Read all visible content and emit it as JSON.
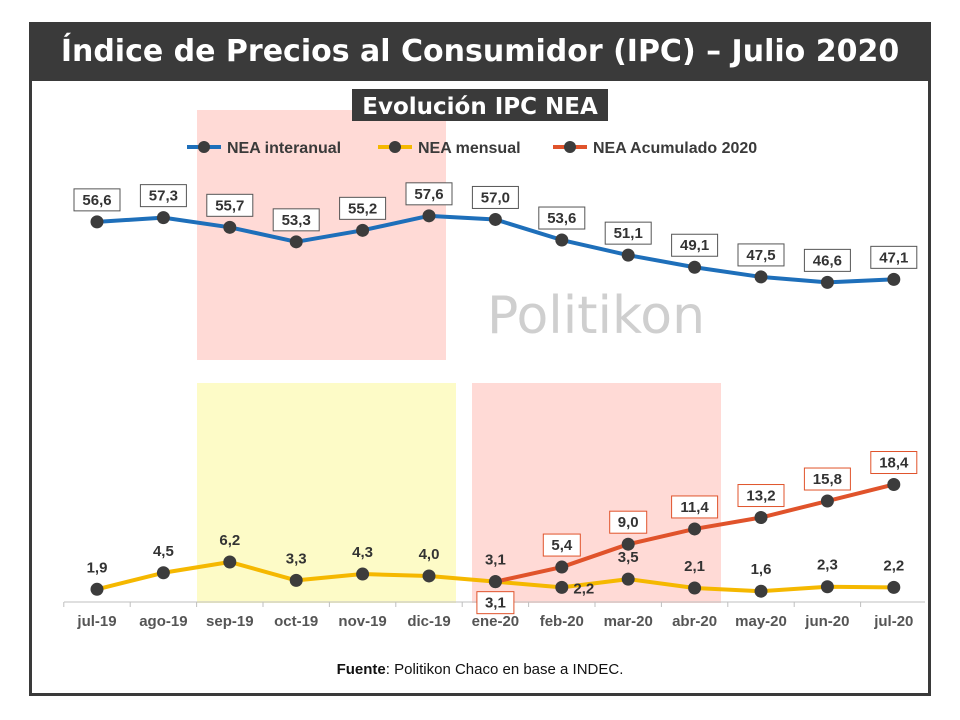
{
  "title": "Índice de Precios al Consumidor (IPC) – Julio 2020",
  "source": {
    "label": "Fuente",
    "text": ": Politikon Chaco en base a INDEC."
  },
  "watermark": "Politikon",
  "colors": {
    "interanual": "#1e6fba",
    "mensual": "#f5b800",
    "acumulado": "#e0532b",
    "marker": "#3c3c3c"
  },
  "chart_data": {
    "type": "line",
    "title": "Evolución IPC NEA",
    "categories": [
      "jul-19",
      "ago-19",
      "sep-19",
      "oct-19",
      "nov-19",
      "dic-19",
      "ene-20",
      "feb-20",
      "mar-20",
      "abr-20",
      "may-20",
      "jun-20",
      "jul-20"
    ],
    "series": [
      {
        "name": "NEA interanual",
        "values": [
          56.6,
          57.3,
          55.7,
          53.3,
          55.2,
          57.6,
          57.0,
          53.6,
          51.1,
          49.1,
          47.5,
          46.6,
          47.1
        ],
        "labels": [
          "56,6",
          "57,3",
          "55,7",
          "53,3",
          "55,2",
          "57,6",
          "57,0",
          "53,6",
          "51,1",
          "49,1",
          "47,5",
          "46,6",
          "47,1"
        ]
      },
      {
        "name": "NEA mensual",
        "values": [
          1.9,
          4.5,
          6.2,
          3.3,
          4.3,
          4.0,
          3.1,
          2.2,
          3.5,
          2.1,
          1.6,
          2.3,
          2.2
        ],
        "labels": [
          "1,9",
          "4,5",
          "6,2",
          "3,3",
          "4,3",
          "4,0",
          "3,1",
          "2,2",
          "3,5",
          "2,1",
          "1,6",
          "2,3",
          "2,2"
        ]
      },
      {
        "name": "NEA Acumulado 2020",
        "values": [
          null,
          null,
          null,
          null,
          null,
          null,
          3.1,
          5.4,
          9.0,
          11.4,
          13.2,
          15.8,
          18.4
        ],
        "labels": [
          null,
          null,
          null,
          null,
          null,
          null,
          "3,1",
          "5,4",
          "9,0",
          "11,4",
          "13,2",
          "15,8",
          "18,4"
        ]
      }
    ],
    "legend": "top",
    "grid": false
  }
}
